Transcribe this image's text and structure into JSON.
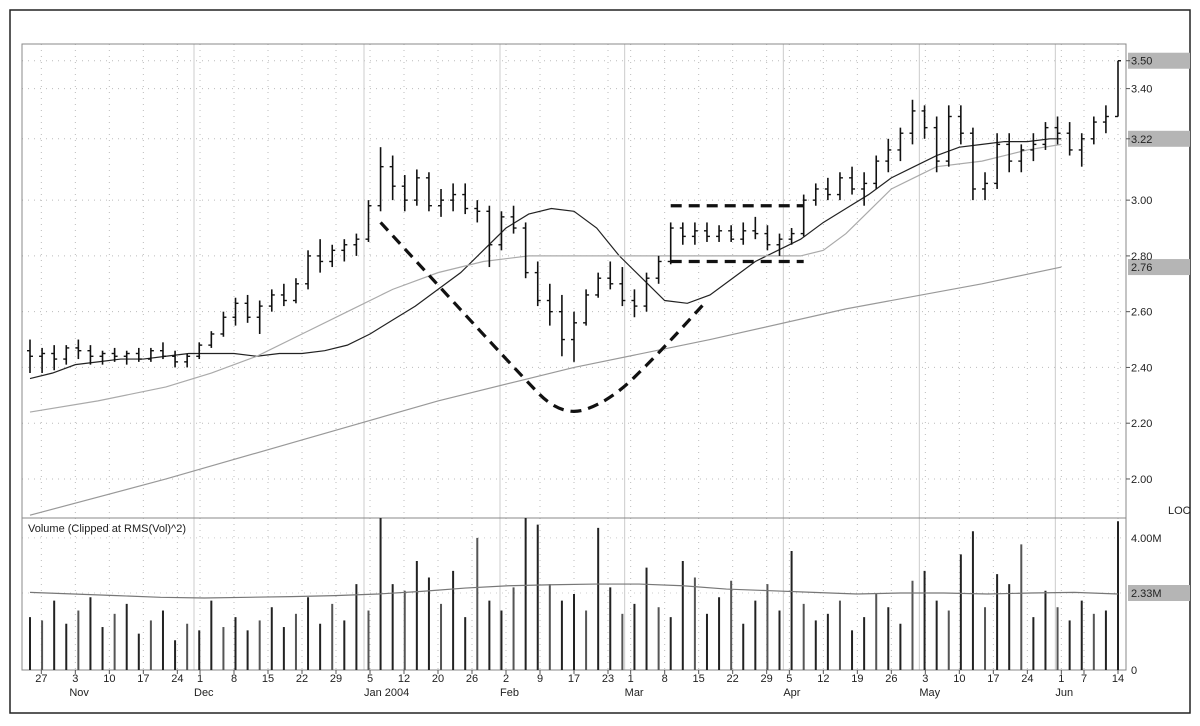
{
  "chart_data": {
    "type": "ohlc",
    "price_panel": {
      "y_ticks": [
        "2.00",
        "2.20",
        "2.40",
        "2.60",
        "2.80",
        "3.00",
        "3.22",
        "3.40",
        "3.50"
      ],
      "y_tick_values": [
        2.0,
        2.2,
        2.4,
        2.6,
        2.8,
        3.0,
        3.22,
        3.4,
        3.5
      ],
      "ylim": [
        1.86,
        3.56
      ],
      "price_tags": [
        {
          "label": "3.50",
          "value": 3.5
        },
        {
          "label": "3.22",
          "value": 3.22
        },
        {
          "label": "2.76",
          "value": 2.76
        }
      ],
      "corner_label": "LOC",
      "bars": [
        [
          2.46,
          2.5,
          2.38,
          2.44
        ],
        [
          2.44,
          2.47,
          2.38,
          2.45
        ],
        [
          2.45,
          2.48,
          2.39,
          2.43
        ],
        [
          2.43,
          2.48,
          2.41,
          2.47
        ],
        [
          2.47,
          2.5,
          2.43,
          2.46
        ],
        [
          2.46,
          2.48,
          2.41,
          2.44
        ],
        [
          2.44,
          2.46,
          2.41,
          2.45
        ],
        [
          2.45,
          2.47,
          2.42,
          2.44
        ],
        [
          2.44,
          2.46,
          2.41,
          2.45
        ],
        [
          2.45,
          2.47,
          2.42,
          2.43
        ],
        [
          2.43,
          2.47,
          2.42,
          2.46
        ],
        [
          2.46,
          2.49,
          2.43,
          2.44
        ],
        [
          2.44,
          2.46,
          2.4,
          2.42
        ],
        [
          2.42,
          2.45,
          2.4,
          2.44
        ],
        [
          2.44,
          2.49,
          2.43,
          2.48
        ],
        [
          2.48,
          2.53,
          2.47,
          2.52
        ],
        [
          2.52,
          2.6,
          2.51,
          2.58
        ],
        [
          2.58,
          2.65,
          2.55,
          2.63
        ],
        [
          2.63,
          2.66,
          2.56,
          2.58
        ],
        [
          2.58,
          2.64,
          2.52,
          2.62
        ],
        [
          2.62,
          2.68,
          2.6,
          2.66
        ],
        [
          2.66,
          2.7,
          2.62,
          2.64
        ],
        [
          2.64,
          2.72,
          2.63,
          2.7
        ],
        [
          2.7,
          2.82,
          2.68,
          2.8
        ],
        [
          2.8,
          2.86,
          2.74,
          2.78
        ],
        [
          2.78,
          2.84,
          2.76,
          2.82
        ],
        [
          2.82,
          2.86,
          2.78,
          2.84
        ],
        [
          2.84,
          2.88,
          2.8,
          2.86
        ],
        [
          2.86,
          3.0,
          2.85,
          2.98
        ],
        [
          2.98,
          3.19,
          2.96,
          3.12
        ],
        [
          3.12,
          3.16,
          3.0,
          3.05
        ],
        [
          3.05,
          3.09,
          2.96,
          3.0
        ],
        [
          3.0,
          3.11,
          2.98,
          3.08
        ],
        [
          3.08,
          3.1,
          2.96,
          2.98
        ],
        [
          2.98,
          3.04,
          2.94,
          3.0
        ],
        [
          3.0,
          3.06,
          2.96,
          3.02
        ],
        [
          3.02,
          3.06,
          2.95,
          2.97
        ],
        [
          2.97,
          3.0,
          2.92,
          2.96
        ],
        [
          2.96,
          2.98,
          2.76,
          2.84
        ],
        [
          2.84,
          2.96,
          2.82,
          2.94
        ],
        [
          2.94,
          2.98,
          2.88,
          2.9
        ],
        [
          2.9,
          2.92,
          2.72,
          2.74
        ],
        [
          2.74,
          2.78,
          2.62,
          2.64
        ],
        [
          2.64,
          2.7,
          2.55,
          2.6
        ],
        [
          2.6,
          2.66,
          2.44,
          2.5
        ],
        [
          2.5,
          2.6,
          2.42,
          2.56
        ],
        [
          2.56,
          2.68,
          2.55,
          2.66
        ],
        [
          2.66,
          2.74,
          2.65,
          2.72
        ],
        [
          2.72,
          2.78,
          2.68,
          2.7
        ],
        [
          2.7,
          2.76,
          2.62,
          2.64
        ],
        [
          2.64,
          2.68,
          2.58,
          2.62
        ],
        [
          2.62,
          2.74,
          2.6,
          2.72
        ],
        [
          2.72,
          2.8,
          2.7,
          2.78
        ],
        [
          2.78,
          2.92,
          2.77,
          2.9
        ],
        [
          2.9,
          2.92,
          2.84,
          2.87
        ],
        [
          2.87,
          2.92,
          2.84,
          2.89
        ],
        [
          2.89,
          2.92,
          2.85,
          2.87
        ],
        [
          2.87,
          2.91,
          2.85,
          2.89
        ],
        [
          2.89,
          2.91,
          2.85,
          2.86
        ],
        [
          2.86,
          2.92,
          2.84,
          2.89
        ],
        [
          2.89,
          2.94,
          2.86,
          2.88
        ],
        [
          2.88,
          2.91,
          2.82,
          2.84
        ],
        [
          2.84,
          2.88,
          2.8,
          2.86
        ],
        [
          2.86,
          2.9,
          2.84,
          2.88
        ],
        [
          2.88,
          3.02,
          2.87,
          3.0
        ],
        [
          3.0,
          3.06,
          2.98,
          3.04
        ],
        [
          3.04,
          3.08,
          3.0,
          3.02
        ],
        [
          3.02,
          3.1,
          3.0,
          3.08
        ],
        [
          3.08,
          3.12,
          3.02,
          3.04
        ],
        [
          3.04,
          3.1,
          2.98,
          3.06
        ],
        [
          3.06,
          3.16,
          3.04,
          3.14
        ],
        [
          3.14,
          3.22,
          3.1,
          3.18
        ],
        [
          3.18,
          3.26,
          3.14,
          3.24
        ],
        [
          3.24,
          3.36,
          3.2,
          3.32
        ],
        [
          3.32,
          3.34,
          3.22,
          3.26
        ],
        [
          3.26,
          3.3,
          3.1,
          3.14
        ],
        [
          3.14,
          3.34,
          3.12,
          3.3
        ],
        [
          3.3,
          3.34,
          3.2,
          3.24
        ],
        [
          3.24,
          3.26,
          3.0,
          3.04
        ],
        [
          3.04,
          3.1,
          3.0,
          3.06
        ],
        [
          3.06,
          3.24,
          3.04,
          3.2
        ],
        [
          3.2,
          3.24,
          3.1,
          3.14
        ],
        [
          3.14,
          3.2,
          3.1,
          3.18
        ],
        [
          3.18,
          3.24,
          3.14,
          3.2
        ],
        [
          3.2,
          3.28,
          3.18,
          3.26
        ],
        [
          3.26,
          3.3,
          3.2,
          3.24
        ],
        [
          3.24,
          3.28,
          3.16,
          3.18
        ],
        [
          3.18,
          3.24,
          3.12,
          3.22
        ],
        [
          3.22,
          3.3,
          3.2,
          3.28
        ],
        [
          3.28,
          3.34,
          3.24,
          3.3
        ],
        [
          3.3,
          3.5,
          3.3,
          3.5
        ]
      ],
      "moving_averages": [
        {
          "color": "#222222",
          "values": [
            2.36,
            2.38,
            2.41,
            2.42,
            2.43,
            2.43,
            2.44,
            2.45,
            2.45,
            2.45,
            2.44,
            2.45,
            2.45,
            2.46,
            2.48,
            2.52,
            2.57,
            2.62,
            2.68,
            2.74,
            2.82,
            2.9,
            2.95,
            2.97,
            2.96,
            2.9,
            2.8,
            2.72,
            2.64,
            2.63,
            2.66,
            2.72,
            2.78,
            2.82,
            2.86,
            2.92,
            2.97,
            3.02,
            3.08,
            3.12,
            3.16,
            3.19,
            3.2,
            3.21,
            3.21,
            3.22,
            3.22,
            3.22
          ],
          "x_at": [
            0,
            2,
            4,
            6,
            8,
            10,
            12,
            14,
            16,
            18,
            20,
            22,
            24,
            26,
            28,
            30,
            32,
            34,
            36,
            38,
            40,
            42,
            44,
            46,
            48,
            50,
            52,
            54,
            56,
            58,
            60,
            62,
            64,
            66,
            68,
            70,
            72,
            74,
            76,
            78,
            80,
            82,
            84,
            86,
            88,
            90,
            91,
            91
          ]
        },
        {
          "color": "#aaaaaa",
          "values": [
            2.24,
            2.28,
            2.33,
            2.38,
            2.44,
            2.52,
            2.6,
            2.68,
            2.74,
            2.78,
            2.8,
            2.8,
            2.8,
            2.8,
            2.8,
            2.8,
            2.8,
            2.82,
            2.88,
            2.96,
            3.04,
            3.08,
            3.12,
            3.14,
            3.16,
            3.18,
            3.2
          ],
          "x_at": [
            0,
            6,
            12,
            16,
            20,
            24,
            28,
            32,
            36,
            40,
            44,
            48,
            52,
            56,
            60,
            64,
            68,
            70,
            72,
            74,
            76,
            78,
            80,
            84,
            86,
            88,
            91
          ]
        },
        {
          "color": "#999999",
          "values": [
            1.87,
            2.0,
            2.14,
            2.28,
            2.4,
            2.5,
            2.61,
            2.7,
            2.76
          ],
          "x_at": [
            0,
            12,
            24,
            36,
            48,
            60,
            72,
            84,
            91
          ]
        }
      ],
      "pattern_overlays": [
        {
          "type": "cup",
          "style": "dashed",
          "points": [
            [
              29,
              2.92
            ],
            [
              40,
              2.4
            ],
            [
              44,
              2.22
            ],
            [
              48,
              2.28
            ],
            [
              52,
              2.45
            ],
            [
              56,
              2.64
            ]
          ]
        },
        {
          "type": "handle-top",
          "style": "dashed",
          "points": [
            [
              53,
              2.98
            ],
            [
              64,
              2.98
            ]
          ]
        },
        {
          "type": "handle-bottom",
          "style": "dashed",
          "points": [
            [
              53,
              2.78
            ],
            [
              64,
              2.78
            ]
          ]
        }
      ]
    },
    "volume_panel": {
      "title": "Volume (Clipped at RMS(Vol)^2)",
      "y_ticks": [
        "0",
        "2.33M",
        "4.00M"
      ],
      "y_tick_values": [
        0,
        2.33,
        4.0
      ],
      "ylim": [
        0,
        4.6
      ],
      "price_tag": {
        "label": "2.33M",
        "value": 2.33
      },
      "values": [
        1.6,
        1.5,
        2.1,
        1.4,
        1.8,
        2.2,
        1.3,
        1.7,
        2.0,
        1.1,
        1.5,
        1.8,
        0.9,
        1.4,
        1.2,
        2.1,
        1.3,
        1.6,
        1.2,
        1.5,
        1.9,
        1.3,
        1.7,
        2.2,
        1.4,
        2.0,
        1.5,
        2.6,
        1.8,
        4.6,
        2.6,
        2.4,
        3.3,
        2.8,
        2.0,
        3.0,
        1.6,
        4.0,
        2.1,
        1.8,
        2.5,
        4.6,
        4.4,
        2.6,
        2.1,
        2.3,
        1.8,
        4.3,
        2.5,
        1.7,
        2.0,
        3.1,
        1.9,
        1.6,
        3.3,
        2.8,
        1.7,
        2.2,
        2.7,
        1.4,
        2.1,
        2.6,
        1.8,
        3.6,
        2.0,
        1.5,
        1.7,
        2.1,
        1.2,
        1.6,
        2.3,
        1.9,
        1.4,
        2.7,
        3.0,
        2.1,
        1.8,
        3.5,
        4.2,
        1.9,
        2.9,
        2.6,
        3.8,
        1.6,
        2.4,
        1.9,
        1.5,
        2.1,
        1.7,
        1.8,
        4.5
      ],
      "moving_average": [
        2.35,
        2.3,
        2.25,
        2.2,
        2.18,
        2.2,
        2.22,
        2.25,
        2.3,
        2.38,
        2.48,
        2.55,
        2.58,
        2.6,
        2.6,
        2.55,
        2.45,
        2.4,
        2.35,
        2.3,
        2.33,
        2.33,
        2.3,
        2.33,
        2.35,
        2.3
      ]
    },
    "x_axis": {
      "day_labels": [
        {
          "label": "27",
          "i": 1
        },
        {
          "label": "3",
          "i": 4
        },
        {
          "label": "10",
          "i": 7
        },
        {
          "label": "17",
          "i": 10
        },
        {
          "label": "24",
          "i": 13
        },
        {
          "label": "1",
          "i": 15
        },
        {
          "label": "8",
          "i": 18
        },
        {
          "label": "15",
          "i": 21
        },
        {
          "label": "22",
          "i": 24
        },
        {
          "label": "29",
          "i": 27
        },
        {
          "label": "5",
          "i": 30
        },
        {
          "label": "12",
          "i": 33
        },
        {
          "label": "20",
          "i": 36
        },
        {
          "label": "26",
          "i": 39
        },
        {
          "label": "2",
          "i": 42
        },
        {
          "label": "9",
          "i": 45
        },
        {
          "label": "17",
          "i": 48
        },
        {
          "label": "23",
          "i": 51
        },
        {
          "label": "1",
          "i": 53
        },
        {
          "label": "8",
          "i": 56
        },
        {
          "label": "15",
          "i": 59
        },
        {
          "label": "22",
          "i": 62
        },
        {
          "label": "29",
          "i": 65
        },
        {
          "label": "5",
          "i": 67
        },
        {
          "label": "12",
          "i": 70
        },
        {
          "label": "19",
          "i": 73
        },
        {
          "label": "26",
          "i": 76
        },
        {
          "label": "3",
          "i": 79
        },
        {
          "label": "10",
          "i": 82
        },
        {
          "label": "17",
          "i": 85
        },
        {
          "label": "24",
          "i": 88
        },
        {
          "label": "1",
          "i": 91
        },
        {
          "label": "7",
          "i": 93
        },
        {
          "label": "14",
          "i": 96
        }
      ],
      "month_labels": [
        {
          "label": "Nov",
          "i": 4
        },
        {
          "label": "Dec",
          "i": 15
        },
        {
          "label": "Jan 2004",
          "i": 30
        },
        {
          "label": "Feb",
          "i": 42
        },
        {
          "label": "Mar",
          "i": 53
        },
        {
          "label": "Apr",
          "i": 67
        },
        {
          "label": "May",
          "i": 79
        },
        {
          "label": "Jun",
          "i": 91
        }
      ],
      "month_starts": [
        15,
        30,
        42,
        53,
        67,
        79,
        91
      ],
      "count": 97
    }
  }
}
